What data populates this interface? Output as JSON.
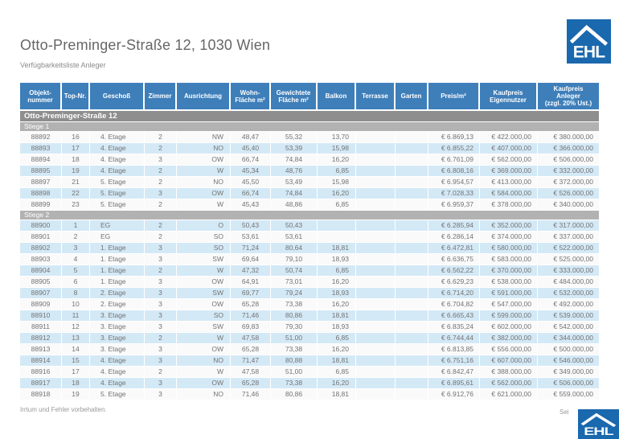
{
  "page": {
    "title": "Otto-Preminger-Straße 12, 1030 Wien",
    "subtitle": "Verfügbarkeitsliste Anleger",
    "disclaimer": "Irrtum und Fehler vorbehalten.",
    "page_number_fragment": "Sei",
    "logo_text": "EHL"
  },
  "colors": {
    "logo_blue": "#1a68ae",
    "header_blue": "#3e7fba",
    "band_dark_gray": "#8e8e8e",
    "band_light_gray": "#b2b2b2",
    "row_blue": "#d4e9f6",
    "row_white": "#fafafa",
    "text_gray": "#737373",
    "title_gray": "#666666",
    "muted_gray": "#999999"
  },
  "table": {
    "building_band": "Otto-Preminger-Straße 12",
    "columns": [
      {
        "id": "objektnummer",
        "lines": [
          "Objekt-",
          "nummer"
        ]
      },
      {
        "id": "topnr",
        "lines": [
          "Top-Nr."
        ]
      },
      {
        "id": "geschoss",
        "lines": [
          "Geschoß"
        ]
      },
      {
        "id": "zimmer",
        "lines": [
          "Zimmer"
        ]
      },
      {
        "id": "ausrichtung",
        "lines": [
          "Ausrichtung"
        ]
      },
      {
        "id": "wohnflaeche",
        "lines": [
          "Wohn-",
          "Fläche m²"
        ]
      },
      {
        "id": "gewichtete-flaeche",
        "lines": [
          "Gewichtete",
          "Fläche m²"
        ]
      },
      {
        "id": "balkon",
        "lines": [
          "Balkon"
        ]
      },
      {
        "id": "terrasse",
        "lines": [
          "Terrasse"
        ]
      },
      {
        "id": "garten",
        "lines": [
          "Garten"
        ]
      },
      {
        "id": "preis-m2",
        "lines": [
          "Preis/m²"
        ]
      },
      {
        "id": "kaufpreis-eigennutzer",
        "lines": [
          "Kaufpreis",
          "Eigennutzer"
        ]
      },
      {
        "id": "kaufpreis-anleger",
        "lines": [
          "Kaufpreis",
          "Anleger",
          "(zzgl. 20% Ust.)"
        ]
      }
    ],
    "sections": [
      {
        "label": "Stiege 1",
        "rows": [
          [
            "88892",
            "16",
            "4. Etage",
            "2",
            "NW",
            "48,47",
            "55,32",
            "13,70",
            "",
            "",
            "€ 6.869,13",
            "€ 422.000,00",
            "€ 380.000,00"
          ],
          [
            "88893",
            "17",
            "4. Etage",
            "2",
            "NO",
            "45,40",
            "53,39",
            "15,98",
            "",
            "",
            "€ 6.855,22",
            "€ 407.000,00",
            "€ 366.000,00"
          ],
          [
            "88894",
            "18",
            "4. Etage",
            "3",
            "OW",
            "66,74",
            "74,84",
            "16,20",
            "",
            "",
            "€ 6.761,09",
            "€ 562.000,00",
            "€ 506.000,00"
          ],
          [
            "88895",
            "19",
            "4. Etage",
            "2",
            "W",
            "45,34",
            "48,76",
            "6,85",
            "",
            "",
            "€ 6.808,16",
            "€ 369.000,00",
            "€ 332.000,00"
          ],
          [
            "88897",
            "21",
            "5. Etage",
            "2",
            "NO",
            "45,50",
            "53,49",
            "15,98",
            "",
            "",
            "€ 6.954,57",
            "€ 413.000,00",
            "€ 372.000,00"
          ],
          [
            "88898",
            "22",
            "5. Etage",
            "3",
            "OW",
            "66,74",
            "74,84",
            "16,20",
            "",
            "",
            "€ 7.028,33",
            "€ 584.000,00",
            "€ 526.000,00"
          ],
          [
            "88899",
            "23",
            "5. Etage",
            "2",
            "W",
            "45,43",
            "48,86",
            "6,85",
            "",
            "",
            "€ 6.959,37",
            "€ 378.000,00",
            "€ 340.000,00"
          ]
        ]
      },
      {
        "label": "Stiege 2",
        "rows": [
          [
            "88900",
            "1",
            "EG",
            "2",
            "O",
            "50,43",
            "50,43",
            "",
            "",
            "",
            "€ 6.285,94",
            "€ 352.000,00",
            "€ 317.000,00"
          ],
          [
            "88901",
            "2",
            "EG",
            "2",
            "SO",
            "53,61",
            "53,61",
            "",
            "",
            "",
            "€ 6.286,14",
            "€ 374.000,00",
            "€ 337.000,00"
          ],
          [
            "88902",
            "3",
            "1. Etage",
            "3",
            "SO",
            "71,24",
            "80,64",
            "18,81",
            "",
            "",
            "€ 6.472,81",
            "€ 580.000,00",
            "€ 522.000,00"
          ],
          [
            "88903",
            "4",
            "1. Etage",
            "3",
            "SW",
            "69,64",
            "79,10",
            "18,93",
            "",
            "",
            "€ 6.636,75",
            "€ 583.000,00",
            "€ 525.000,00"
          ],
          [
            "88904",
            "5",
            "1. Etage",
            "2",
            "W",
            "47,32",
            "50,74",
            "6,85",
            "",
            "",
            "€ 6.562,22",
            "€ 370.000,00",
            "€ 333.000,00"
          ],
          [
            "88905",
            "6",
            "1. Etage",
            "3",
            "OW",
            "64,91",
            "73,01",
            "16,20",
            "",
            "",
            "€ 6.629,23",
            "€ 538.000,00",
            "€ 484.000,00"
          ],
          [
            "88907",
            "8",
            "2. Etage",
            "3",
            "SW",
            "69,77",
            "79,24",
            "18,93",
            "",
            "",
            "€ 6.714,20",
            "€ 591.000,00",
            "€ 532.000,00"
          ],
          [
            "88909",
            "10",
            "2. Etage",
            "3",
            "OW",
            "65,28",
            "73,38",
            "16,20",
            "",
            "",
            "€ 6.704,82",
            "€ 547.000,00",
            "€ 492.000,00"
          ],
          [
            "88910",
            "11",
            "3. Etage",
            "3",
            "SO",
            "71,46",
            "80,86",
            "18,81",
            "",
            "",
            "€ 6.665,43",
            "€ 599.000,00",
            "€ 539.000,00"
          ],
          [
            "88911",
            "12",
            "3. Etage",
            "3",
            "SW",
            "69,83",
            "79,30",
            "18,93",
            "",
            "",
            "€ 6.835,24",
            "€ 602.000,00",
            "€ 542.000,00"
          ],
          [
            "88912",
            "13",
            "3. Etage",
            "2",
            "W",
            "47,58",
            "51,00",
            "6,85",
            "",
            "",
            "€ 6.744,44",
            "€ 382.000,00",
            "€ 344.000,00"
          ],
          [
            "88913",
            "14",
            "3. Etage",
            "3",
            "OW",
            "65,28",
            "73,38",
            "16,20",
            "",
            "",
            "€ 6.813,85",
            "€ 556.000,00",
            "€ 500.000,00"
          ],
          [
            "88914",
            "15",
            "4. Etage",
            "3",
            "NO",
            "71,47",
            "80,88",
            "18,81",
            "",
            "",
            "€ 6.751,16",
            "€ 607.000,00",
            "€ 546.000,00"
          ],
          [
            "88916",
            "17",
            "4. Etage",
            "2",
            "W",
            "47,58",
            "51,00",
            "6,85",
            "",
            "",
            "€ 6.842,47",
            "€ 388.000,00",
            "€ 349.000,00"
          ],
          [
            "88917",
            "18",
            "4. Etage",
            "3",
            "OW",
            "65,28",
            "73,38",
            "16,20",
            "",
            "",
            "€ 6.895,61",
            "€ 562.000,00",
            "€ 506.000,00"
          ],
          [
            "88918",
            "19",
            "5. Etage",
            "3",
            "NO",
            "71,46",
            "80,86",
            "18,81",
            "",
            "",
            "€ 6.912,76",
            "€ 621.000,00",
            "€ 559.000,00"
          ]
        ]
      }
    ]
  }
}
